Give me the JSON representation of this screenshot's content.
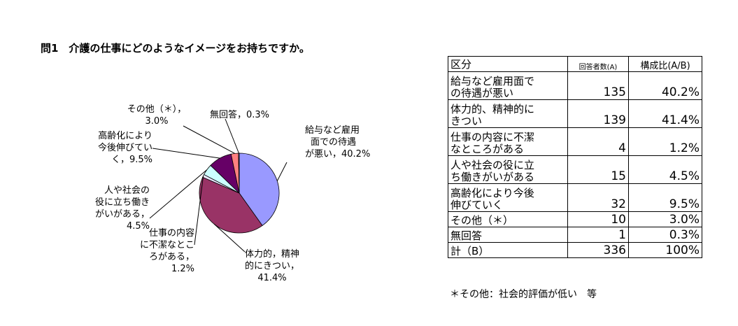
{
  "title": "問1　介護の仕事にどのようなイメージをお持ちですか。",
  "colors": {
    "slice_1": "#9999ff",
    "slice_2": "#993366",
    "slice_3": "#e8e8ff",
    "slice_4": "#ccffff",
    "slice_5": "#660066",
    "slice_6": "#ff8080",
    "slice_7": "#ccccff"
  },
  "chart_data": {
    "type": "pie",
    "categories": [
      "給与など雇用面での待遇が悪い",
      "体力的、精神的にきつい",
      "仕事の内容に不潔なところがある",
      "人や社会の役に立ち働きがいがある",
      "高齢化により今後伸びていく",
      "その他（＊）",
      "無回答"
    ],
    "values": [
      40.2,
      41.4,
      1.2,
      4.5,
      9.5,
      3.0,
      0.3
    ],
    "labels": [
      [
        "給与など雇用",
        "面での待遇",
        "が悪い，40.2%"
      ],
      [
        "体力的，精神",
        "的にきつい，",
        "41.4%"
      ],
      [
        "仕事の内容",
        "に不潔なとこ",
        "ろがある，",
        "1.2%"
      ],
      [
        "人や社会の",
        "役に立ち働き",
        "がいがある，",
        "4.5%"
      ],
      [
        "高齢化により",
        "今後伸びてい",
        "く，9.5%"
      ],
      [
        "その他（＊），",
        "3.0%"
      ],
      [
        "無回答，0.3%"
      ]
    ]
  },
  "table": {
    "headers": [
      "区分",
      "回答者数(A)",
      "構成比(A/B)"
    ],
    "rows": [
      {
        "cat": [
          "給与など雇用面で",
          "の待遇が悪い"
        ],
        "n": "135",
        "p": "40.2%"
      },
      {
        "cat": [
          "体力的、精神的に",
          "きつい"
        ],
        "n": "139",
        "p": "41.4%"
      },
      {
        "cat": [
          "仕事の内容に不潔",
          "なところがある"
        ],
        "n": "4",
        "p": "1.2%"
      },
      {
        "cat": [
          "人や社会の役に立",
          "ち働きがいがある"
        ],
        "n": "15",
        "p": "4.5%"
      },
      {
        "cat": [
          "高齢化により今後",
          "伸びていく"
        ],
        "n": "32",
        "p": "9.5%"
      },
      {
        "cat": [
          "その他（＊）"
        ],
        "n": "10",
        "p": "3.0%"
      },
      {
        "cat": [
          "無回答"
        ],
        "n": "1",
        "p": "0.3%"
      },
      {
        "cat": [
          "計（B）"
        ],
        "n": "336",
        "p": "100%"
      }
    ]
  },
  "note": "＊その他：社会的評価が低い　等"
}
